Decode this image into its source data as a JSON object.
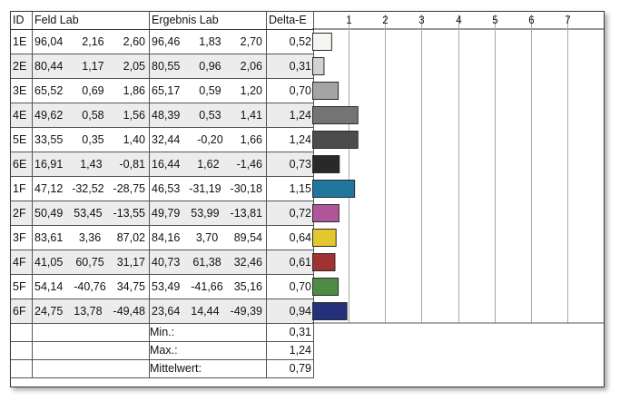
{
  "table": {
    "headers": {
      "id": "ID",
      "field_lab": "Feld Lab",
      "result_lab": "Ergebnis Lab",
      "delta_e": "Delta-E"
    },
    "rows": [
      {
        "id": "1E",
        "feld": [
          "96,04",
          "2,16",
          "2,60"
        ],
        "ergebnis": [
          "96,46",
          "1,83",
          "2,70"
        ],
        "delta_e": "0,52",
        "color": "#f7f5f2"
      },
      {
        "id": "2E",
        "feld": [
          "80,44",
          "1,17",
          "2,05"
        ],
        "ergebnis": [
          "80,55",
          "0,96",
          "2,06"
        ],
        "delta_e": "0,31",
        "color": "#d2d2d2"
      },
      {
        "id": "3E",
        "feld": [
          "65,52",
          "0,69",
          "1,86"
        ],
        "ergebnis": [
          "65,17",
          "0,59",
          "1,20"
        ],
        "delta_e": "0,70",
        "color": "#a4a4a4"
      },
      {
        "id": "4E",
        "feld": [
          "49,62",
          "0,58",
          "1,56"
        ],
        "ergebnis": [
          "48,39",
          "0,53",
          "1,41"
        ],
        "delta_e": "1,24",
        "color": "#747474"
      },
      {
        "id": "5E",
        "feld": [
          "33,55",
          "0,35",
          "1,40"
        ],
        "ergebnis": [
          "32,44",
          "-0,20",
          "1,66"
        ],
        "delta_e": "1,24",
        "color": "#4c4c4c"
      },
      {
        "id": "6E",
        "feld": [
          "16,91",
          "1,43",
          "-0,81"
        ],
        "ergebnis": [
          "16,44",
          "1,62",
          "-1,46"
        ],
        "delta_e": "0,73",
        "color": "#2a2829"
      },
      {
        "id": "1F",
        "feld": [
          "47,12",
          "-32,52",
          "-28,75"
        ],
        "ergebnis": [
          "46,53",
          "-31,19",
          "-30,18"
        ],
        "delta_e": "1,15",
        "color": "#1f77a0"
      },
      {
        "id": "2F",
        "feld": [
          "50,49",
          "53,45",
          "-13,55"
        ],
        "ergebnis": [
          "49,79",
          "53,99",
          "-13,81"
        ],
        "delta_e": "0,72",
        "color": "#b0559a"
      },
      {
        "id": "3F",
        "feld": [
          "83,61",
          "3,36",
          "87,02"
        ],
        "ergebnis": [
          "84,16",
          "3,70",
          "89,54"
        ],
        "delta_e": "0,64",
        "color": "#e2c72e"
      },
      {
        "id": "4F",
        "feld": [
          "41,05",
          "60,75",
          "31,17"
        ],
        "ergebnis": [
          "40,73",
          "61,38",
          "32,46"
        ],
        "delta_e": "0,61",
        "color": "#a0332f"
      },
      {
        "id": "5F",
        "feld": [
          "54,14",
          "-40,76",
          "34,75"
        ],
        "ergebnis": [
          "53,49",
          "-41,66",
          "35,16"
        ],
        "delta_e": "0,70",
        "color": "#4e8c45"
      },
      {
        "id": "6F",
        "feld": [
          "24,75",
          "13,78",
          "-49,48"
        ],
        "ergebnis": [
          "23,64",
          "14,44",
          "-49,39"
        ],
        "delta_e": "0,94",
        "color": "#24307c"
      }
    ],
    "stats": [
      {
        "label": "Min.:",
        "value": "0,31"
      },
      {
        "label": "Max.:",
        "value": "1,24"
      },
      {
        "label": "Mittelwert:",
        "value": "0,79"
      }
    ]
  },
  "chart_data": {
    "type": "bar",
    "orientation": "horizontal",
    "categories": [
      "1E",
      "2E",
      "3E",
      "4E",
      "5E",
      "6E",
      "1F",
      "2F",
      "3F",
      "4F",
      "5F",
      "6F"
    ],
    "values": [
      0.52,
      0.31,
      0.7,
      1.24,
      1.24,
      0.73,
      1.15,
      0.72,
      0.64,
      0.61,
      0.7,
      0.94
    ],
    "colors": [
      "#f7f5f2",
      "#d2d2d2",
      "#a4a4a4",
      "#747474",
      "#4c4c4c",
      "#2a2829",
      "#1f77a0",
      "#b0559a",
      "#e2c72e",
      "#a0332f",
      "#4e8c45",
      "#24307c"
    ],
    "xlim": [
      0,
      8
    ],
    "ticks": [
      1,
      2,
      3,
      4,
      5,
      6,
      7
    ],
    "tick_labels": [
      "1",
      "2",
      "3",
      "4",
      "5",
      "6",
      "7"
    ],
    "grid": "vertical",
    "title": "",
    "xlabel": "",
    "ylabel": ""
  }
}
